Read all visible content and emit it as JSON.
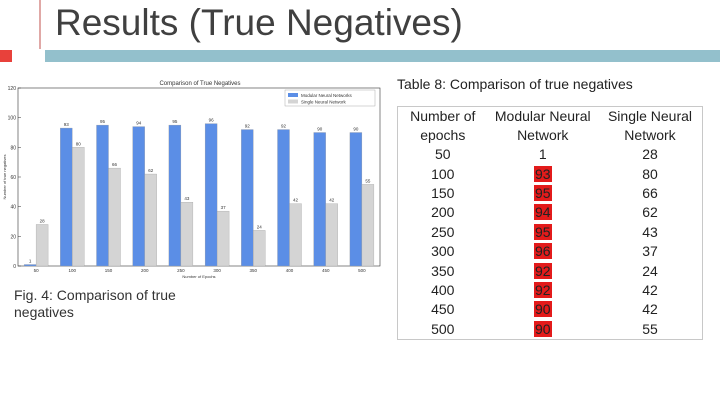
{
  "header": {
    "title": "Results (True Negatives)"
  },
  "figure_caption": "Fig. 4: Comparison of true negatives",
  "table_caption": "Table 8: Comparison of true negatives",
  "chart_data": {
    "type": "bar",
    "title": "Comparison of True Negatives",
    "x_label": "Number of Epochs",
    "y_label": "Number of true negatives",
    "categories": [
      "50",
      "100",
      "150",
      "200",
      "250",
      "300",
      "350",
      "400",
      "450",
      "500"
    ],
    "series": [
      {
        "name": "Modular Neural Networks",
        "color": "#5b8ee6",
        "values": [
          1,
          93,
          95,
          94,
          95,
          96,
          92,
          92,
          90,
          90
        ]
      },
      {
        "name": "Single Neural Network",
        "color": "#d4d4d4",
        "values": [
          28,
          80,
          66,
          62,
          43,
          37,
          24,
          42,
          42,
          55
        ]
      }
    ],
    "ylim": [
      0,
      120
    ],
    "yticks": [
      0,
      20,
      40,
      60,
      80,
      100,
      120
    ],
    "legend": "upper right"
  },
  "table": {
    "columns": [
      "Number of epochs",
      "Modular Neural Network",
      "Single Neural Network"
    ],
    "rows": [
      [
        50,
        1,
        28
      ],
      [
        100,
        93,
        80
      ],
      [
        150,
        95,
        66
      ],
      [
        200,
        94,
        62
      ],
      [
        250,
        95,
        43
      ],
      [
        300,
        96,
        37
      ],
      [
        350,
        92,
        24
      ],
      [
        400,
        92,
        42
      ],
      [
        450,
        90,
        42
      ],
      [
        500,
        90,
        55
      ]
    ]
  }
}
